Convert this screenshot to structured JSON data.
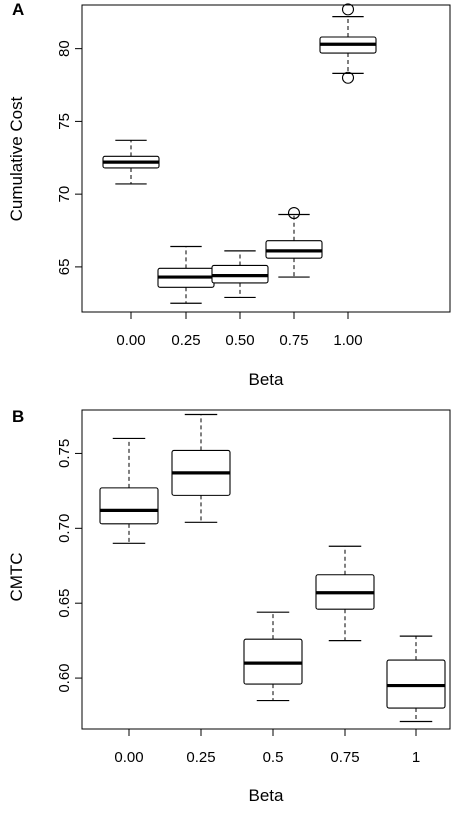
{
  "chart_data": [
    {
      "type": "box",
      "panel_label": "A",
      "xlabel": "Beta",
      "ylabel": "Cumulative Cost",
      "categories": [
        "0.00",
        "0.25",
        "0.50",
        "0.75",
        "1.00"
      ],
      "ylim": [
        61.9,
        83.0
      ],
      "yticks": [
        {
          "value": 65,
          "label": "65"
        },
        {
          "value": 70,
          "label": "70"
        },
        {
          "value": 75,
          "label": "75"
        },
        {
          "value": 80,
          "label": "80"
        }
      ],
      "boxes": [
        {
          "whisker_low": 70.7,
          "q1": 71.8,
          "median": 72.2,
          "q3": 72.6,
          "whisker_high": 73.7,
          "outliers": []
        },
        {
          "whisker_low": 62.5,
          "q1": 63.6,
          "median": 64.3,
          "q3": 64.9,
          "whisker_high": 66.4,
          "outliers": []
        },
        {
          "whisker_low": 62.9,
          "q1": 63.9,
          "median": 64.4,
          "q3": 65.1,
          "whisker_high": 66.1,
          "outliers": []
        },
        {
          "whisker_low": 64.3,
          "q1": 65.6,
          "median": 66.1,
          "q3": 66.8,
          "whisker_high": 68.6,
          "outliers": [
            68.7
          ]
        },
        {
          "whisker_low": 78.3,
          "q1": 79.7,
          "median": 80.3,
          "q3": 80.8,
          "whisker_high": 82.2,
          "outliers": [
            82.7,
            78.0
          ]
        }
      ]
    },
    {
      "type": "box",
      "panel_label": "B",
      "xlabel": "Beta",
      "ylabel": "CMTC",
      "categories": [
        "0.00",
        "0.25",
        "0.5",
        "0.75",
        "1"
      ],
      "ylim": [
        0.566,
        0.779
      ],
      "yticks": [
        {
          "value": 0.6,
          "label": "0.60"
        },
        {
          "value": 0.65,
          "label": "0.65"
        },
        {
          "value": 0.7,
          "label": "0.70"
        },
        {
          "value": 0.75,
          "label": "0.75"
        }
      ],
      "boxes": [
        {
          "whisker_low": 0.69,
          "q1": 0.703,
          "median": 0.712,
          "q3": 0.727,
          "whisker_high": 0.76,
          "outliers": []
        },
        {
          "whisker_low": 0.704,
          "q1": 0.722,
          "median": 0.737,
          "q3": 0.752,
          "whisker_high": 0.776,
          "outliers": []
        },
        {
          "whisker_low": 0.585,
          "q1": 0.596,
          "median": 0.61,
          "q3": 0.626,
          "whisker_high": 0.644,
          "outliers": []
        },
        {
          "whisker_low": 0.625,
          "q1": 0.646,
          "median": 0.657,
          "q3": 0.669,
          "whisker_high": 0.688,
          "outliers": []
        },
        {
          "whisker_low": 0.571,
          "q1": 0.58,
          "median": 0.595,
          "q3": 0.612,
          "whisker_high": 0.628,
          "outliers": []
        }
      ]
    }
  ]
}
